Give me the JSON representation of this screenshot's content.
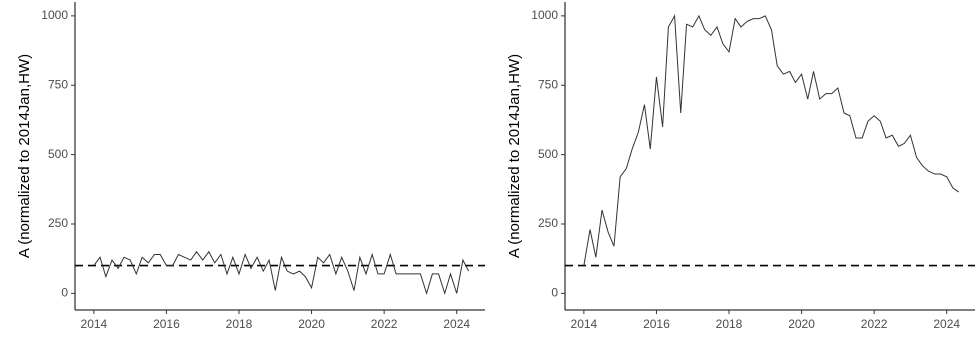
{
  "chart_data": [
    {
      "type": "line",
      "ylabel": "A (normalized to 2014Jan,HW)",
      "x": [
        2014.0,
        2014.17,
        2014.33,
        2014.5,
        2014.67,
        2014.83,
        2015.0,
        2015.17,
        2015.33,
        2015.5,
        2015.67,
        2015.83,
        2016.0,
        2016.17,
        2016.33,
        2016.5,
        2016.67,
        2016.83,
        2017.0,
        2017.17,
        2017.33,
        2017.5,
        2017.67,
        2017.83,
        2018.0,
        2018.17,
        2018.33,
        2018.5,
        2018.67,
        2018.83,
        2019.0,
        2019.17,
        2019.33,
        2019.5,
        2019.67,
        2019.83,
        2020.0,
        2020.17,
        2020.33,
        2020.5,
        2020.67,
        2020.83,
        2021.0,
        2021.17,
        2021.33,
        2021.5,
        2021.67,
        2021.83,
        2022.0,
        2022.17,
        2022.33,
        2022.5,
        2022.67,
        2022.83,
        2023.0,
        2023.17,
        2023.33,
        2023.5,
        2023.67,
        2023.83,
        2024.0,
        2024.17,
        2024.33
      ],
      "series": [
        {
          "color": "#333333",
          "values": [
            100,
            130,
            60,
            120,
            90,
            130,
            120,
            70,
            130,
            110,
            140,
            140,
            100,
            100,
            140,
            130,
            120,
            150,
            120,
            150,
            110,
            140,
            70,
            130,
            70,
            140,
            90,
            130,
            80,
            120,
            10,
            130,
            80,
            70,
            80,
            60,
            20,
            130,
            110,
            140,
            70,
            130,
            80,
            10,
            130,
            70,
            140,
            70,
            70,
            140,
            70,
            70,
            70,
            70,
            70,
            0,
            70,
            70,
            0,
            70,
            0,
            120,
            80
          ]
        }
      ],
      "hline": 100,
      "hline_color": "#000000",
      "xlim": [
        2013.48,
        2024.78
      ],
      "xticks": [
        2014,
        2016,
        2018,
        2020,
        2022,
        2024
      ],
      "ylim": [
        -60,
        1050
      ],
      "yticks": [
        0,
        250,
        500,
        750,
        1000
      ]
    },
    {
      "type": "line",
      "ylabel": "A (normalized to 2014Jan,HW)",
      "x": [
        2014.0,
        2014.17,
        2014.33,
        2014.5,
        2014.67,
        2014.83,
        2015.0,
        2015.17,
        2015.33,
        2015.5,
        2015.67,
        2015.83,
        2016.0,
        2016.17,
        2016.33,
        2016.5,
        2016.67,
        2016.83,
        2017.0,
        2017.17,
        2017.33,
        2017.5,
        2017.67,
        2017.83,
        2018.0,
        2018.17,
        2018.33,
        2018.5,
        2018.67,
        2018.83,
        2019.0,
        2019.17,
        2019.33,
        2019.5,
        2019.67,
        2019.83,
        2020.0,
        2020.17,
        2020.33,
        2020.5,
        2020.67,
        2020.83,
        2021.0,
        2021.17,
        2021.33,
        2021.5,
        2021.67,
        2021.83,
        2022.0,
        2022.17,
        2022.33,
        2022.5,
        2022.67,
        2022.83,
        2023.0,
        2023.17,
        2023.33,
        2023.5,
        2023.67,
        2023.83,
        2024.0,
        2024.17,
        2024.33
      ],
      "series": [
        {
          "color": "#333333",
          "values": [
            100,
            230,
            130,
            300,
            220,
            170,
            420,
            450,
            520,
            580,
            680,
            520,
            780,
            600,
            960,
            1000,
            650,
            970,
            960,
            1000,
            950,
            930,
            960,
            900,
            870,
            990,
            960,
            980,
            990,
            990,
            1000,
            950,
            820,
            790,
            800,
            760,
            790,
            700,
            800,
            700,
            720,
            720,
            740,
            650,
            640,
            560,
            560,
            620,
            640,
            620,
            560,
            570,
            530,
            540,
            570,
            490,
            460,
            440,
            430,
            430,
            420,
            380,
            365
          ]
        }
      ],
      "hline": 100,
      "hline_color": "#000000",
      "xlim": [
        2013.48,
        2024.78
      ],
      "xticks": [
        2014,
        2016,
        2018,
        2020,
        2022,
        2024
      ],
      "ylim": [
        -60,
        1050
      ],
      "yticks": [
        0,
        250,
        500,
        750,
        1000
      ]
    }
  ]
}
